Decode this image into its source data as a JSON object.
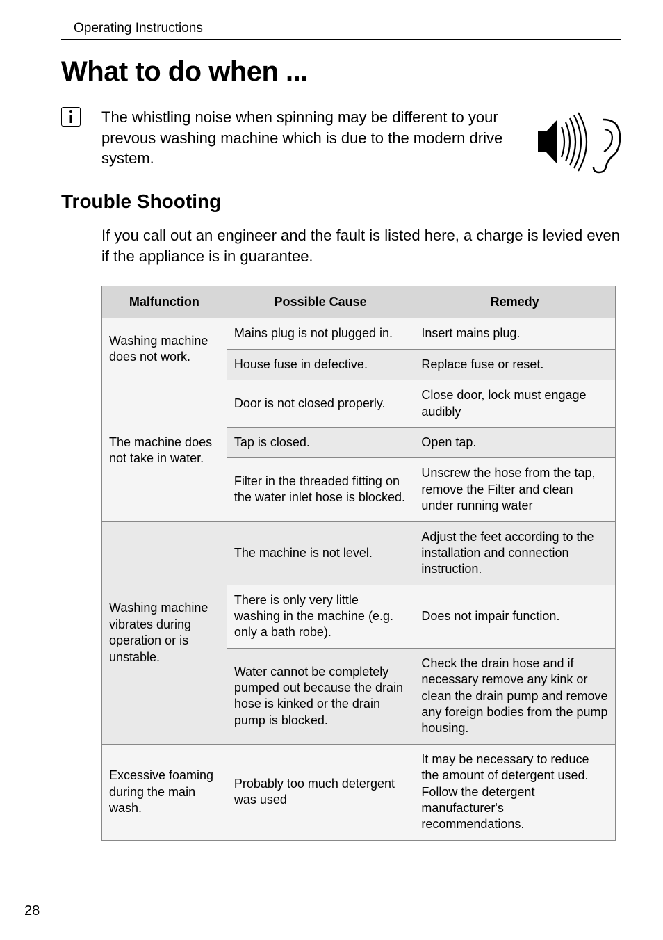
{
  "header": "Operating Instructions",
  "title": "What to do when ...",
  "info_text": "The whistling noise when spinning may be different to your prevous washing machine which is due to the modern drive system.",
  "subtitle": "Trouble Shooting",
  "lead_text": "If you call out an engineer and the fault is listed here, a charge is levied even if the appliance is in guarantee.",
  "table": {
    "headers": [
      "Malfunction",
      "Possible Cause",
      "Remedy"
    ],
    "rows": [
      {
        "mal": "Washing machine does not work.",
        "cause": "Mains plug is not plugged in.",
        "remedy": "Insert mains plug.",
        "mal_rowspan": 2
      },
      {
        "mal": "",
        "cause": "House fuse in defective.",
        "remedy": "Replace fuse or reset.",
        "mal_rowspan": 0
      },
      {
        "mal": "The machine does not take in water.",
        "cause": "Door is not closed properly.",
        "remedy": "Close door, lock must engage audibly",
        "mal_rowspan": 3
      },
      {
        "mal": "",
        "cause": "Tap is closed.",
        "remedy": "Open tap.",
        "mal_rowspan": 0
      },
      {
        "mal": "",
        "cause": "Filter in the threaded fitting on the water inlet hose is blocked.",
        "remedy": "Unscrew the hose from the tap, remove the Filter and clean under running water",
        "mal_rowspan": 0
      },
      {
        "mal": "Washing machine vibrates during operation or is unstable.",
        "cause": "The machine is not level.",
        "remedy": "Adjust the feet according to the installation and connection instruction.",
        "mal_rowspan": 3
      },
      {
        "mal": "",
        "cause": "There is only very little washing in the machine (e.g. only a bath robe).",
        "remedy": "Does not impair function.",
        "mal_rowspan": 0
      },
      {
        "mal": "",
        "cause": "Water cannot be completely pumped out because the drain hose is kinked or the drain pump is blocked.",
        "remedy": "Check the drain hose and if necessary remove any kink or clean the drain pump and remove any foreign bodies from the pump housing.",
        "mal_rowspan": 0
      },
      {
        "mal": "Excessive foaming during the main wash.",
        "cause": "Probably too much detergent was used",
        "remedy": "It may be necessary to reduce the amount of detergent used. Follow the detergent manufacturer's recommendations.",
        "mal_rowspan": 1
      }
    ]
  },
  "page_number": "28",
  "colors": {
    "header_bg": "#d7d7d7",
    "row_light": "#f5f5f5",
    "row_dark": "#e9e9e9",
    "border": "#888888"
  }
}
